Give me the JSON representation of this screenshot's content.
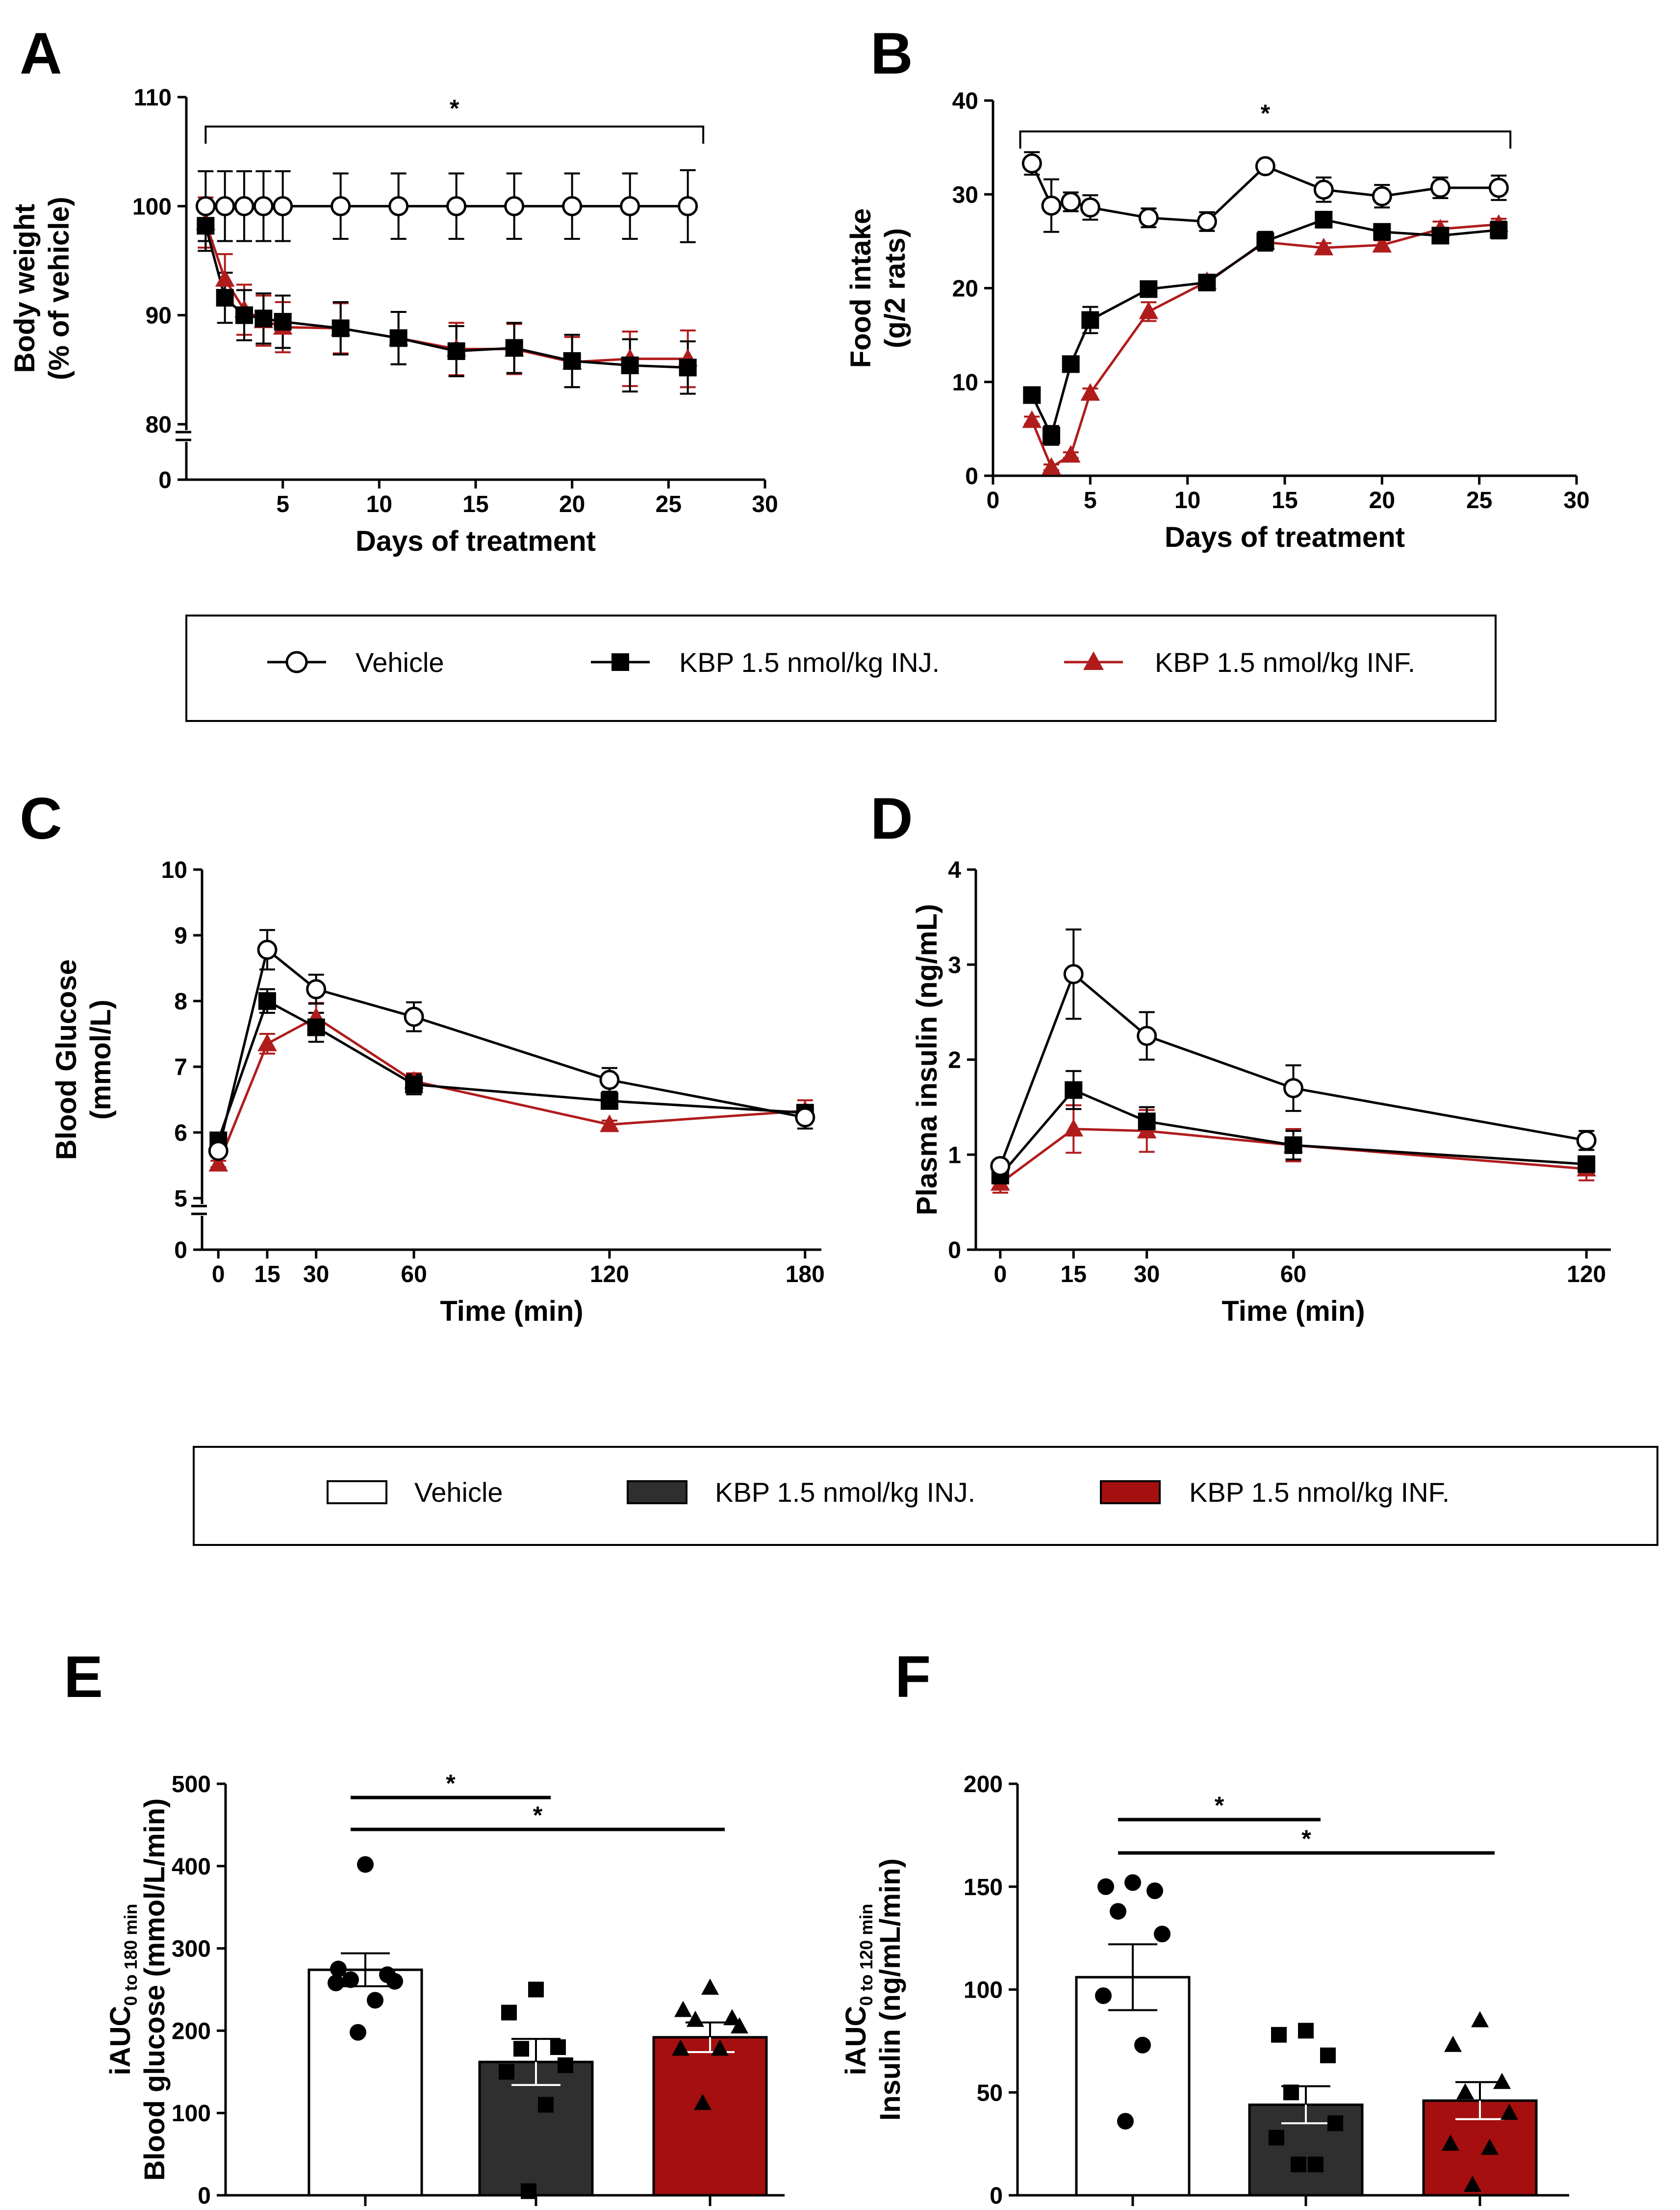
{
  "colors": {
    "vehicle": "#ffffff",
    "inj": "#000000",
    "inf": "#b01c1c",
    "inj_bar": "#2f2f2f",
    "inf_bar": "#a50f0f"
  },
  "legend_top": {
    "vehicle": "Vehicle",
    "inj": "KBP 1.5 nmol/kg INJ.",
    "inf": "KBP 1.5 nmol/kg INF."
  },
  "legend_mid": {
    "vehicle": "Vehicle",
    "inj": "KBP 1.5 nmol/kg INJ.",
    "inf": "KBP 1.5 nmol/kg INF."
  },
  "chart_data": [
    {
      "panel": "A",
      "type": "line",
      "xlabel": "Days of treatment",
      "ylabel_line1": "Body weight",
      "ylabel_line2": "(% of vehicle)",
      "xlim": [
        0,
        30
      ],
      "xticks": [
        5,
        10,
        15,
        20,
        25,
        30
      ],
      "ylim": [
        80,
        110
      ],
      "yticks": [
        80,
        90,
        100,
        110
      ],
      "ybreak_zero": "0",
      "significance": "*",
      "series": [
        {
          "name": "Vehicle",
          "x": [
            1,
            2,
            3,
            4,
            5,
            8,
            11,
            14,
            17,
            20,
            23,
            26
          ],
          "y": [
            100,
            100,
            100,
            100,
            100,
            100,
            100,
            100,
            100,
            100,
            100,
            100
          ],
          "err": [
            3.2,
            3.2,
            3.2,
            3.2,
            3.2,
            3.0,
            3.0,
            3.0,
            3.0,
            3.0,
            3.0,
            3.3
          ]
        },
        {
          "name": "KBP 1.5 nmol/kg INJ.",
          "x": [
            1,
            2,
            3,
            4,
            5,
            8,
            11,
            14,
            17,
            20,
            23,
            26
          ],
          "y": [
            98.2,
            91.6,
            90.0,
            89.7,
            89.4,
            88.8,
            87.9,
            86.7,
            87.0,
            85.8,
            85.4,
            85.2
          ],
          "err": [
            2.3,
            2.3,
            2.3,
            2.3,
            2.4,
            2.4,
            2.4,
            2.3,
            2.3,
            2.4,
            2.4,
            2.4
          ]
        },
        {
          "name": "KBP 1.5 nmol/kg INF.",
          "x": [
            1,
            2,
            3,
            4,
            5,
            8,
            11,
            14,
            17,
            20,
            23,
            26
          ],
          "y": [
            98.5,
            93.3,
            90.5,
            89.5,
            88.9,
            88.8,
            87.9,
            86.9,
            86.9,
            85.7,
            86.0,
            86.0
          ],
          "err": [
            2.3,
            2.3,
            2.3,
            2.3,
            2.3,
            2.3,
            2.4,
            2.4,
            2.3,
            2.3,
            2.5,
            2.6
          ]
        }
      ]
    },
    {
      "panel": "B",
      "type": "line",
      "xlabel": "Days of treatment",
      "ylabel_line1": "Food intake",
      "ylabel_line2": "(g/2 rats)",
      "xlim": [
        0,
        30
      ],
      "xticks": [
        0,
        5,
        10,
        15,
        20,
        25,
        30
      ],
      "ylim": [
        0,
        40
      ],
      "yticks": [
        0,
        10,
        20,
        30,
        40
      ],
      "significance": "*",
      "series": [
        {
          "name": "Vehicle",
          "x": [
            2,
            3,
            4,
            5,
            8,
            11,
            14,
            17,
            20,
            23,
            26
          ],
          "y": [
            33.3,
            28.8,
            29.2,
            28.6,
            27.5,
            27.1,
            33.0,
            30.5,
            29.8,
            30.7,
            30.7
          ],
          "err": [
            1.2,
            2.8,
            1.0,
            1.3,
            1.0,
            1.0,
            0.5,
            1.3,
            1.2,
            1.1,
            1.3
          ]
        },
        {
          "name": "KBP 1.5 nmol/kg INJ.",
          "x": [
            2,
            3,
            4,
            5,
            8,
            11,
            14,
            17,
            20,
            23,
            26
          ],
          "y": [
            8.6,
            4.3,
            11.9,
            16.6,
            19.9,
            20.6,
            25.0,
            27.3,
            26.0,
            25.6,
            26.2
          ],
          "err": [
            0.5,
            1.0,
            0.8,
            1.4,
            0.6,
            0.5,
            1.0,
            0.5,
            0.5,
            0.7,
            0.9
          ]
        },
        {
          "name": "KBP 1.5 nmol/kg INF.",
          "x": [
            2,
            3,
            4,
            5,
            8,
            11,
            14,
            17,
            20,
            23,
            26
          ],
          "y": [
            5.9,
            0.9,
            2.2,
            8.8,
            17.5,
            20.7,
            24.9,
            24.3,
            24.6,
            26.3,
            26.8
          ],
          "err": [
            0.4,
            0.3,
            0.3,
            0.5,
            1.0,
            0.5,
            0.8,
            0.5,
            0.5,
            0.8,
            0.6
          ]
        }
      ]
    },
    {
      "panel": "C",
      "type": "line",
      "xlabel": "Time (min)",
      "ylabel_line1": "Blood Glucose",
      "ylabel_line2": "(mmol/L)",
      "xlim": [
        -5,
        185
      ],
      "xticks": [
        0,
        15,
        30,
        60,
        120,
        180
      ],
      "ylim": [
        5,
        10
      ],
      "yticks": [
        5,
        6,
        7,
        8,
        9,
        10
      ],
      "ybreak_zero": "0",
      "series": [
        {
          "name": "Vehicle",
          "x": [
            0,
            15,
            30,
            60,
            120,
            180
          ],
          "y": [
            5.72,
            8.78,
            8.18,
            7.76,
            6.8,
            6.23
          ],
          "err": [
            0.08,
            0.3,
            0.22,
            0.22,
            0.18,
            0.17
          ]
        },
        {
          "name": "KBP 1.5 nmol/kg INJ.",
          "x": [
            0,
            15,
            30,
            60,
            120,
            180
          ],
          "y": [
            5.88,
            8.0,
            7.6,
            6.73,
            6.48,
            6.3
          ],
          "err": [
            0.07,
            0.18,
            0.22,
            0.15,
            0.12,
            0.12
          ]
        },
        {
          "name": "KBP 1.5 nmol/kg INF.",
          "x": [
            0,
            15,
            30,
            60,
            120,
            180
          ],
          "y": [
            5.52,
            7.35,
            7.75,
            6.78,
            6.12,
            6.33
          ],
          "err": [
            0.05,
            0.15,
            0.22,
            0.12,
            0.06,
            0.16
          ]
        }
      ]
    },
    {
      "panel": "D",
      "type": "line",
      "xlabel": "Time (min)",
      "ylabel_line1": "Plasma insulin (ng/mL)",
      "xlim": [
        -5,
        125
      ],
      "xticks": [
        0,
        15,
        30,
        60,
        120
      ],
      "ylim": [
        0,
        4
      ],
      "yticks": [
        0,
        1,
        2,
        3,
        4
      ],
      "series": [
        {
          "name": "Vehicle",
          "x": [
            0,
            15,
            30,
            60,
            120
          ],
          "y": [
            0.88,
            2.9,
            2.25,
            1.7,
            1.15
          ],
          "err": [
            0.06,
            0.47,
            0.25,
            0.24,
            0.1
          ]
        },
        {
          "name": "KBP 1.5 nmol/kg INJ.",
          "x": [
            0,
            15,
            30,
            60,
            120
          ],
          "y": [
            0.78,
            1.68,
            1.35,
            1.1,
            0.9
          ],
          "err": [
            0.08,
            0.2,
            0.15,
            0.15,
            0.08
          ]
        },
        {
          "name": "KBP 1.5 nmol/kg INF.",
          "x": [
            0,
            15,
            30,
            60,
            120
          ],
          "y": [
            0.7,
            1.27,
            1.25,
            1.1,
            0.85
          ],
          "err": [
            0.1,
            0.25,
            0.22,
            0.17,
            0.12
          ]
        }
      ]
    },
    {
      "panel": "E",
      "type": "bar",
      "ylabel_main": "iAUC",
      "ylabel_sub": "0 to 180 min",
      "ylabel_line2": "Blood glucose (mmol/L/min)",
      "ylim": [
        0,
        500
      ],
      "yticks": [
        0,
        100,
        200,
        300,
        400,
        500
      ],
      "categories": [
        "Vehicle",
        "KBP 1.5 nmol/kg INJ.",
        "KBP 1.5 nmol/kg INF."
      ],
      "values": [
        274,
        162,
        192
      ],
      "err": [
        20,
        28,
        18
      ],
      "points": [
        [
          402,
          275,
          268,
          262,
          260,
          258,
          237,
          198
        ],
        [
          250,
          222,
          180,
          178,
          158,
          150,
          110,
          5
        ],
        [
          252,
          225,
          215,
          213,
          205,
          178,
          178,
          112
        ]
      ],
      "significance": [
        {
          "from": 0,
          "to": 1,
          "label": "*"
        },
        {
          "from": 0,
          "to": 2,
          "label": "*"
        }
      ]
    },
    {
      "panel": "F",
      "type": "bar",
      "ylabel_main": "iAUC",
      "ylabel_sub": "0 to 120 min",
      "ylabel_line2": "Insulin (ng/mL/min)",
      "ylim": [
        0,
        200
      ],
      "yticks": [
        0,
        50,
        100,
        150,
        200
      ],
      "categories": [
        "Vehicle",
        "KBP 1.5 nmol/kg INJ.",
        "KBP 1.5 nmol/kg INF."
      ],
      "values": [
        106,
        44,
        46
      ],
      "err": [
        16,
        9,
        9
      ],
      "points": [
        [
          152,
          150,
          148,
          138,
          127,
          97,
          73,
          36
        ],
        [
          80,
          78,
          68,
          50,
          35,
          28,
          15,
          15
        ],
        [
          85,
          73,
          55,
          50,
          40,
          25,
          23,
          5
        ]
      ],
      "significance": [
        {
          "from": 0,
          "to": 1,
          "label": "*"
        },
        {
          "from": 0,
          "to": 2,
          "label": "*"
        }
      ]
    }
  ]
}
